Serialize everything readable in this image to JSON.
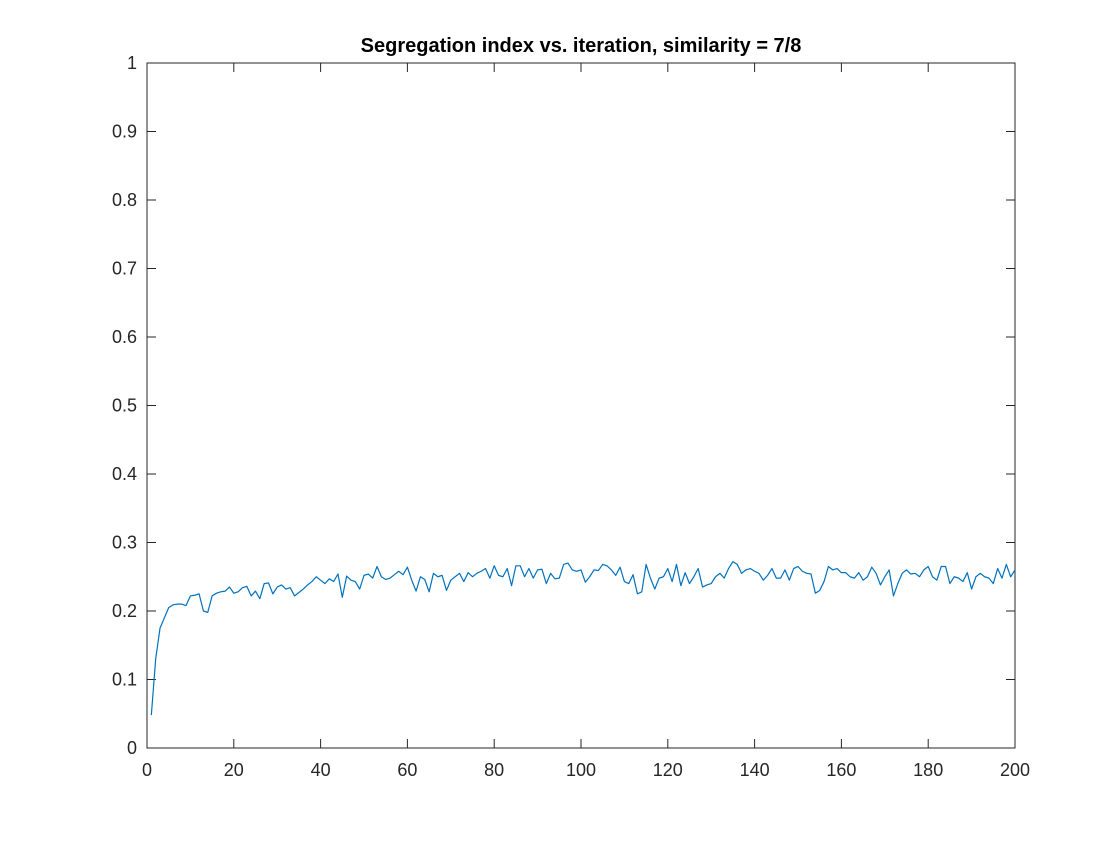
{
  "chart_data": {
    "type": "line",
    "title": "Segregation index vs. iteration, similarity = 7/8",
    "xlabel": "",
    "ylabel": "",
    "xlim": [
      0,
      200
    ],
    "ylim": [
      0,
      1
    ],
    "grid": false,
    "x_ticks": [
      "0",
      "20",
      "40",
      "60",
      "80",
      "100",
      "120",
      "140",
      "160",
      "180",
      "200"
    ],
    "y_ticks": [
      "0",
      "0.1",
      "0.2",
      "0.3",
      "0.4",
      "0.5",
      "0.6",
      "0.7",
      "0.8",
      "0.9",
      "1"
    ],
    "series": [
      {
        "color": "#0072BD",
        "x_start": 1,
        "x_step": 1,
        "values": [
          0.048,
          0.13,
          0.175,
          0.19,
          0.205,
          0.209,
          0.21,
          0.21,
          0.208,
          0.222,
          0.223,
          0.225,
          0.2,
          0.198,
          0.222,
          0.226,
          0.228,
          0.229,
          0.235,
          0.226,
          0.228,
          0.234,
          0.236,
          0.222,
          0.229,
          0.218,
          0.24,
          0.241,
          0.225,
          0.235,
          0.238,
          0.232,
          0.234,
          0.222,
          0.227,
          0.232,
          0.238,
          0.243,
          0.25,
          0.245,
          0.24,
          0.247,
          0.243,
          0.254,
          0.22,
          0.251,
          0.245,
          0.243,
          0.232,
          0.252,
          0.254,
          0.248,
          0.265,
          0.25,
          0.246,
          0.248,
          0.253,
          0.258,
          0.253,
          0.264,
          0.245,
          0.229,
          0.25,
          0.246,
          0.228,
          0.255,
          0.25,
          0.252,
          0.23,
          0.245,
          0.25,
          0.255,
          0.243,
          0.256,
          0.25,
          0.255,
          0.258,
          0.262,
          0.248,
          0.266,
          0.252,
          0.25,
          0.262,
          0.237,
          0.266,
          0.266,
          0.25,
          0.262,
          0.248,
          0.26,
          0.261,
          0.24,
          0.255,
          0.247,
          0.248,
          0.268,
          0.27,
          0.26,
          0.258,
          0.26,
          0.242,
          0.25,
          0.26,
          0.259,
          0.268,
          0.266,
          0.26,
          0.252,
          0.264,
          0.243,
          0.24,
          0.253,
          0.225,
          0.228,
          0.268,
          0.248,
          0.232,
          0.248,
          0.25,
          0.262,
          0.243,
          0.268,
          0.237,
          0.256,
          0.24,
          0.25,
          0.262,
          0.235,
          0.238,
          0.24,
          0.25,
          0.255,
          0.248,
          0.262,
          0.272,
          0.268,
          0.255,
          0.26,
          0.262,
          0.258,
          0.255,
          0.245,
          0.252,
          0.262,
          0.248,
          0.248,
          0.26,
          0.245,
          0.262,
          0.265,
          0.258,
          0.255,
          0.254,
          0.226,
          0.23,
          0.243,
          0.265,
          0.26,
          0.262,
          0.256,
          0.256,
          0.25,
          0.248,
          0.256,
          0.245,
          0.25,
          0.264,
          0.255,
          0.238,
          0.25,
          0.26,
          0.222,
          0.24,
          0.255,
          0.26,
          0.254,
          0.255,
          0.25,
          0.26,
          0.265,
          0.25,
          0.245,
          0.265,
          0.265,
          0.24,
          0.25,
          0.248,
          0.243,
          0.256,
          0.232,
          0.25,
          0.255,
          0.25,
          0.248,
          0.24,
          0.262,
          0.248,
          0.268,
          0.25,
          0.26
        ]
      }
    ]
  }
}
